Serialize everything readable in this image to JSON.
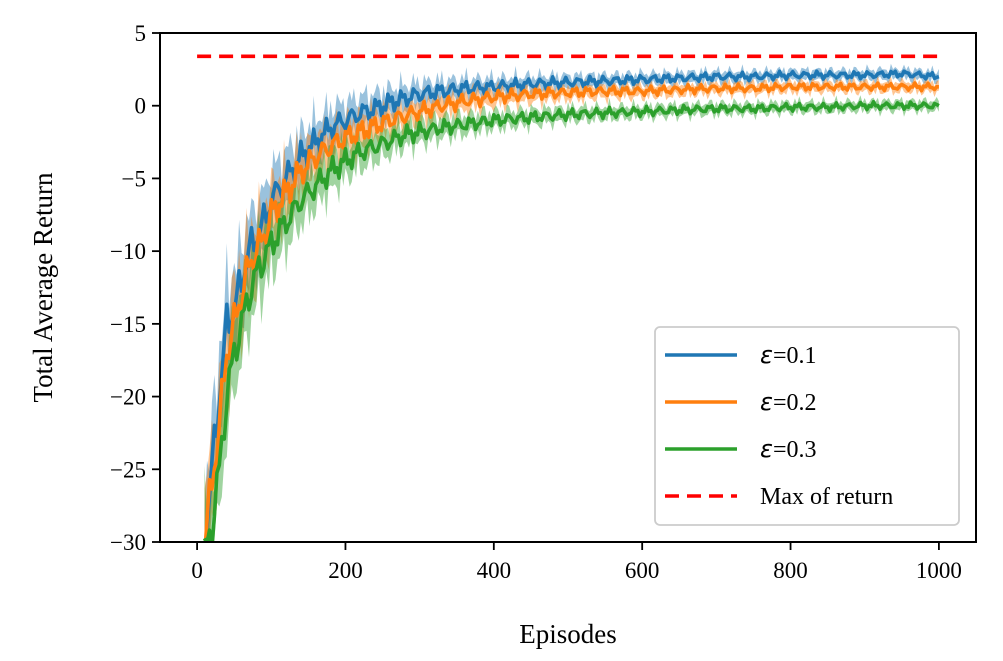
{
  "chart_data": {
    "type": "line",
    "xlabel": "Episodes",
    "ylabel": "Total Average Return",
    "xlim": [
      -50,
      1050
    ],
    "ylim": [
      -30,
      5
    ],
    "xticks": [
      0,
      200,
      400,
      600,
      800,
      1000
    ],
    "yticks": [
      -30,
      -25,
      -20,
      -15,
      -10,
      -5,
      0,
      5
    ],
    "xtick_labels": [
      "0",
      "200",
      "400",
      "600",
      "800",
      "1000"
    ],
    "ytick_labels": [
      "−30",
      "−25",
      "−20",
      "−15",
      "−10",
      "−5",
      "0",
      "5"
    ],
    "grid": false,
    "legend_position": "lower-right",
    "series": [
      {
        "name": "ε=0.1",
        "symbol": "ε",
        "suffix": "=0.1",
        "color": "#1f77b4",
        "style": "solid",
        "shaded_band": true,
        "x": [
          10,
          20,
          30,
          40,
          50,
          60,
          70,
          80,
          90,
          100,
          120,
          140,
          160,
          180,
          200,
          220,
          240,
          260,
          280,
          300,
          330,
          360,
          400,
          450,
          500,
          550,
          600,
          650,
          700,
          750,
          800,
          850,
          900,
          950,
          1000
        ],
        "y": [
          -30,
          -25,
          -20,
          -15,
          -14,
          -12,
          -10,
          -9,
          -8,
          -6.5,
          -5,
          -3.5,
          -2.5,
          -1.5,
          -1,
          -0.5,
          -0.2,
          0.2,
          0.5,
          0.8,
          1,
          1.2,
          1.3,
          1.5,
          1.6,
          1.7,
          1.8,
          1.9,
          2,
          2,
          2.1,
          2.1,
          2.1,
          2.2,
          2
        ]
      },
      {
        "name": "ε=0.2",
        "symbol": "ε",
        "suffix": "=0.2",
        "color": "#ff7f0e",
        "style": "solid",
        "shaded_band": true,
        "x": [
          10,
          20,
          30,
          40,
          50,
          60,
          70,
          80,
          90,
          100,
          120,
          140,
          160,
          180,
          200,
          220,
          240,
          260,
          280,
          300,
          330,
          360,
          400,
          450,
          500,
          550,
          600,
          650,
          700,
          750,
          800,
          850,
          900,
          950,
          1000
        ],
        "y": [
          -30,
          -26,
          -22,
          -17,
          -15,
          -13,
          -11,
          -10,
          -9,
          -7.5,
          -6,
          -4.5,
          -3.5,
          -2.8,
          -2.2,
          -1.8,
          -1.4,
          -1,
          -0.7,
          -0.4,
          0,
          0.3,
          0.6,
          0.8,
          0.9,
          1,
          1,
          1.1,
          1.2,
          1.2,
          1.3,
          1.3,
          1.3,
          1.3,
          1.3
        ]
      },
      {
        "name": "ε=0.3",
        "symbol": "ε",
        "suffix": "=0.3",
        "color": "#2ca02c",
        "style": "solid",
        "shaded_band": true,
        "x": [
          10,
          20,
          30,
          40,
          50,
          60,
          70,
          80,
          90,
          100,
          120,
          140,
          160,
          180,
          200,
          220,
          240,
          260,
          280,
          300,
          330,
          360,
          400,
          450,
          500,
          550,
          600,
          650,
          700,
          750,
          800,
          850,
          900,
          950,
          1000
        ],
        "y": [
          -31,
          -29,
          -25,
          -20,
          -17,
          -15,
          -13,
          -11.5,
          -10.5,
          -9.5,
          -8,
          -6.5,
          -5.5,
          -4.5,
          -3.8,
          -3.2,
          -2.8,
          -2.4,
          -2,
          -1.8,
          -1.5,
          -1.3,
          -1,
          -0.8,
          -0.6,
          -0.5,
          -0.4,
          -0.3,
          -0.2,
          -0.2,
          -0.1,
          -0.1,
          0,
          0,
          0
        ]
      },
      {
        "name": "Max of return",
        "symbol": "",
        "suffix": "Max of return",
        "color": "#ff0000",
        "style": "dashed",
        "shaded_band": false,
        "x": [
          0,
          1000
        ],
        "y": [
          3.4,
          3.4
        ]
      }
    ]
  }
}
